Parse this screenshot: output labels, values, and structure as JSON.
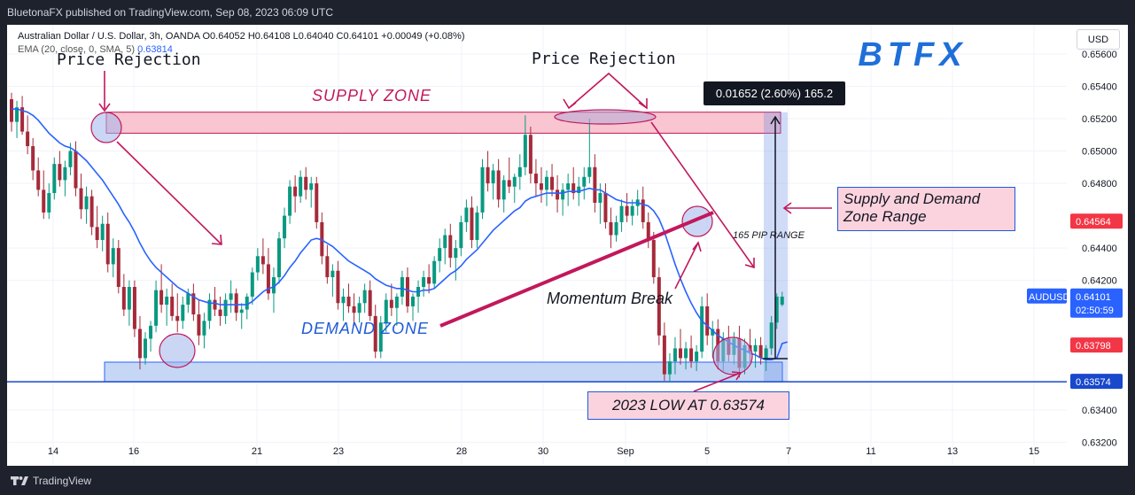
{
  "publisher_line": "BluetonaFX published on TradingView.com, Sep 08, 2023 06:09 UTC",
  "footer": {
    "brand": "TradingView"
  },
  "legend": {
    "line1": "Australian Dollar / U.S. Dollar, 3h, OANDA  O0.64052  H0.64108  L0.64040  C0.64101  +0.00049 (+0.08%)",
    "line2_label": "EMA (20, close, 0, SMA, 5)",
    "line2_value": "0.63814"
  },
  "logo_text": "BTFX",
  "chart_data": {
    "type": "candlestick",
    "symbol": "AUDUSD",
    "timeframe": "3h",
    "currency": "USD",
    "ylim": [
      0.6306,
      0.6578
    ],
    "y_ticks": [
      "0.65600",
      "0.65400",
      "0.65200",
      "0.65000",
      "0.64800",
      "0.64400",
      "0.64200",
      "0.63400",
      "0.63200"
    ],
    "x_ticks": [
      "14",
      "16",
      "21",
      "23",
      "28",
      "30",
      "Sep",
      "5",
      "7",
      "11",
      "13",
      "15"
    ],
    "candles": [
      [
        0.6532,
        0.6536,
        0.6512,
        0.6518
      ],
      [
        0.6518,
        0.6531,
        0.6508,
        0.6527
      ],
      [
        0.6527,
        0.6534,
        0.651,
        0.6512
      ],
      [
        0.6512,
        0.6522,
        0.6498,
        0.6503
      ],
      [
        0.6503,
        0.6508,
        0.6482,
        0.6488
      ],
      [
        0.6488,
        0.6496,
        0.6472,
        0.6476
      ],
      [
        0.6476,
        0.6488,
        0.6458,
        0.6462
      ],
      [
        0.6462,
        0.648,
        0.6458,
        0.6474
      ],
      [
        0.6474,
        0.6496,
        0.647,
        0.6492
      ],
      [
        0.6492,
        0.65,
        0.6478,
        0.6482
      ],
      [
        0.6482,
        0.6494,
        0.6472,
        0.649
      ],
      [
        0.649,
        0.6505,
        0.6485,
        0.65
      ],
      [
        0.65,
        0.6506,
        0.6472,
        0.6477
      ],
      [
        0.6477,
        0.6486,
        0.6458,
        0.6464
      ],
      [
        0.6464,
        0.6478,
        0.6455,
        0.6472
      ],
      [
        0.6472,
        0.6476,
        0.6448,
        0.6453
      ],
      [
        0.6453,
        0.6466,
        0.644,
        0.6445
      ],
      [
        0.6445,
        0.646,
        0.6438,
        0.6455
      ],
      [
        0.6455,
        0.6462,
        0.6425,
        0.643
      ],
      [
        0.643,
        0.6446,
        0.6422,
        0.644
      ],
      [
        0.644,
        0.6445,
        0.6412,
        0.6416
      ],
      [
        0.6416,
        0.6424,
        0.6398,
        0.6402
      ],
      [
        0.6402,
        0.642,
        0.6392,
        0.6416
      ],
      [
        0.6416,
        0.642,
        0.6385,
        0.639
      ],
      [
        0.639,
        0.6398,
        0.6365,
        0.6372
      ],
      [
        0.6372,
        0.6388,
        0.6368,
        0.6384
      ],
      [
        0.6384,
        0.6395,
        0.6376,
        0.6392
      ],
      [
        0.6392,
        0.642,
        0.6388,
        0.6414
      ],
      [
        0.6414,
        0.643,
        0.64,
        0.6405
      ],
      [
        0.6405,
        0.6415,
        0.6392,
        0.641
      ],
      [
        0.641,
        0.6418,
        0.6395,
        0.6398
      ],
      [
        0.6398,
        0.6412,
        0.6388,
        0.6395
      ],
      [
        0.6395,
        0.641,
        0.639,
        0.6405
      ],
      [
        0.6405,
        0.6415,
        0.64,
        0.6412
      ],
      [
        0.6412,
        0.6418,
        0.6395,
        0.6399
      ],
      [
        0.6399,
        0.6408,
        0.638,
        0.6386
      ],
      [
        0.6386,
        0.64,
        0.6378,
        0.6395
      ],
      [
        0.6395,
        0.6412,
        0.639,
        0.6408
      ],
      [
        0.6408,
        0.6416,
        0.6398,
        0.6402
      ],
      [
        0.6402,
        0.641,
        0.6392,
        0.6398
      ],
      [
        0.6398,
        0.6412,
        0.6393,
        0.6408
      ],
      [
        0.6408,
        0.642,
        0.64,
        0.6412
      ],
      [
        0.6412,
        0.6415,
        0.6395,
        0.64
      ],
      [
        0.64,
        0.6406,
        0.639,
        0.6402
      ],
      [
        0.6402,
        0.6412,
        0.6396,
        0.641
      ],
      [
        0.641,
        0.6428,
        0.6405,
        0.6425
      ],
      [
        0.6425,
        0.644,
        0.642,
        0.6435
      ],
      [
        0.6435,
        0.6446,
        0.6424,
        0.643
      ],
      [
        0.643,
        0.644,
        0.6408,
        0.6412
      ],
      [
        0.6412,
        0.6428,
        0.64,
        0.6422
      ],
      [
        0.6422,
        0.645,
        0.6418,
        0.6446
      ],
      [
        0.6446,
        0.6465,
        0.644,
        0.646
      ],
      [
        0.646,
        0.6482,
        0.6455,
        0.6478
      ],
      [
        0.6478,
        0.6485,
        0.6462,
        0.6472
      ],
      [
        0.6472,
        0.6488,
        0.6468,
        0.6484
      ],
      [
        0.6484,
        0.649,
        0.647,
        0.6476
      ],
      [
        0.6476,
        0.6484,
        0.6465,
        0.648
      ],
      [
        0.648,
        0.6484,
        0.6452,
        0.6456
      ],
      [
        0.6456,
        0.6462,
        0.643,
        0.6435
      ],
      [
        0.6435,
        0.6442,
        0.6418,
        0.6422
      ],
      [
        0.6422,
        0.643,
        0.641,
        0.6426
      ],
      [
        0.6426,
        0.6432,
        0.6402,
        0.6406
      ],
      [
        0.6406,
        0.6415,
        0.6395,
        0.641
      ],
      [
        0.641,
        0.6418,
        0.64,
        0.6404
      ],
      [
        0.6404,
        0.6412,
        0.6392,
        0.64
      ],
      [
        0.64,
        0.641,
        0.6394,
        0.6406
      ],
      [
        0.6406,
        0.6418,
        0.64,
        0.6414
      ],
      [
        0.6414,
        0.642,
        0.6395,
        0.6398
      ],
      [
        0.6398,
        0.6405,
        0.6372,
        0.6376
      ],
      [
        0.6376,
        0.6398,
        0.6372,
        0.6394
      ],
      [
        0.6394,
        0.6412,
        0.6388,
        0.6408
      ],
      [
        0.6408,
        0.6418,
        0.6398,
        0.6403
      ],
      [
        0.6403,
        0.6412,
        0.6392,
        0.641
      ],
      [
        0.641,
        0.6426,
        0.6405,
        0.6422
      ],
      [
        0.6422,
        0.6428,
        0.64,
        0.6404
      ],
      [
        0.6404,
        0.6412,
        0.6395,
        0.641
      ],
      [
        0.641,
        0.642,
        0.64,
        0.6416
      ],
      [
        0.6416,
        0.6426,
        0.641,
        0.6422
      ],
      [
        0.6422,
        0.643,
        0.6412,
        0.6418
      ],
      [
        0.6418,
        0.6435,
        0.6415,
        0.6432
      ],
      [
        0.6432,
        0.6446,
        0.6425,
        0.644
      ],
      [
        0.644,
        0.6452,
        0.643,
        0.6448
      ],
      [
        0.6448,
        0.6455,
        0.6428,
        0.6434
      ],
      [
        0.6434,
        0.6445,
        0.642,
        0.644
      ],
      [
        0.644,
        0.646,
        0.6435,
        0.6456
      ],
      [
        0.6456,
        0.647,
        0.645,
        0.6465
      ],
      [
        0.6465,
        0.6472,
        0.644,
        0.6445
      ],
      [
        0.6445,
        0.6466,
        0.644,
        0.6462
      ],
      [
        0.6462,
        0.6495,
        0.6458,
        0.649
      ],
      [
        0.649,
        0.65,
        0.6475,
        0.648
      ],
      [
        0.648,
        0.6492,
        0.647,
        0.6488
      ],
      [
        0.6488,
        0.6495,
        0.6465,
        0.647
      ],
      [
        0.647,
        0.6485,
        0.6462,
        0.6482
      ],
      [
        0.6482,
        0.6496,
        0.6474,
        0.6478
      ],
      [
        0.6478,
        0.6486,
        0.6468,
        0.6484
      ],
      [
        0.6484,
        0.6498,
        0.6476,
        0.649
      ],
      [
        0.649,
        0.6522,
        0.6485,
        0.651
      ],
      [
        0.651,
        0.6515,
        0.648,
        0.6486
      ],
      [
        0.6486,
        0.6495,
        0.6472,
        0.648
      ],
      [
        0.648,
        0.649,
        0.6468,
        0.6476
      ],
      [
        0.6476,
        0.6488,
        0.6466,
        0.6484
      ],
      [
        0.6484,
        0.6492,
        0.6472,
        0.6476
      ],
      [
        0.6476,
        0.6485,
        0.6462,
        0.647
      ],
      [
        0.647,
        0.648,
        0.646,
        0.6476
      ],
      [
        0.6476,
        0.6486,
        0.6466,
        0.648
      ],
      [
        0.648,
        0.649,
        0.647,
        0.6474
      ],
      [
        0.6474,
        0.6484,
        0.6466,
        0.6478
      ],
      [
        0.6478,
        0.649,
        0.647,
        0.6484
      ],
      [
        0.6484,
        0.652,
        0.648,
        0.649
      ],
      [
        0.649,
        0.6498,
        0.6462,
        0.6468
      ],
      [
        0.6468,
        0.648,
        0.6455,
        0.6474
      ],
      [
        0.6474,
        0.648,
        0.6452,
        0.6456
      ],
      [
        0.6456,
        0.6465,
        0.644,
        0.6448
      ],
      [
        0.6448,
        0.646,
        0.6444,
        0.6456
      ],
      [
        0.6456,
        0.647,
        0.645,
        0.6466
      ],
      [
        0.6466,
        0.6474,
        0.6456,
        0.646
      ],
      [
        0.646,
        0.647,
        0.6454,
        0.6466
      ],
      [
        0.6466,
        0.6476,
        0.646,
        0.647
      ],
      [
        0.647,
        0.6478,
        0.6452,
        0.6456
      ],
      [
        0.6456,
        0.6462,
        0.644,
        0.6445
      ],
      [
        0.6445,
        0.645,
        0.6418,
        0.6422
      ],
      [
        0.6422,
        0.6428,
        0.638,
        0.6386
      ],
      [
        0.6386,
        0.6394,
        0.6358,
        0.6362
      ],
      [
        0.6362,
        0.6375,
        0.6357,
        0.637
      ],
      [
        0.637,
        0.6385,
        0.6362,
        0.6378
      ],
      [
        0.6378,
        0.639,
        0.6368,
        0.6372
      ],
      [
        0.6372,
        0.6382,
        0.6365,
        0.6378
      ],
      [
        0.6378,
        0.6386,
        0.6366,
        0.637
      ],
      [
        0.637,
        0.638,
        0.6364,
        0.6376
      ],
      [
        0.6376,
        0.641,
        0.6372,
        0.6404
      ],
      [
        0.6404,
        0.6412,
        0.638,
        0.6386
      ],
      [
        0.6386,
        0.6395,
        0.6372,
        0.639
      ],
      [
        0.639,
        0.6396,
        0.6365,
        0.637
      ],
      [
        0.637,
        0.6388,
        0.6364,
        0.6384
      ],
      [
        0.6384,
        0.6392,
        0.637,
        0.6374
      ],
      [
        0.6374,
        0.6388,
        0.6368,
        0.6384
      ],
      [
        0.6384,
        0.6392,
        0.636,
        0.6366
      ],
      [
        0.6366,
        0.6384,
        0.6362,
        0.638
      ],
      [
        0.638,
        0.639,
        0.637,
        0.6376
      ],
      [
        0.6376,
        0.6384,
        0.6366,
        0.638
      ],
      [
        0.638,
        0.6385,
        0.6368,
        0.6372
      ],
      [
        0.6372,
        0.638,
        0.6364,
        0.6378
      ],
      [
        0.6378,
        0.6398,
        0.6374,
        0.6394
      ],
      [
        0.6394,
        0.6412,
        0.639,
        0.641
      ],
      [
        0.6405,
        0.6413,
        0.6404,
        0.641
      ]
    ],
    "ema": [
      0.6526,
      0.6526,
      0.6525,
      0.6524,
      0.6522,
      0.6519,
      0.6515,
      0.6511,
      0.6508,
      0.6505,
      0.6503,
      0.6502,
      0.65,
      0.6497,
      0.6494,
      0.649,
      0.6486,
      0.6482,
      0.6477,
      0.6472,
      0.6467,
      0.6461,
      0.6456,
      0.645,
      0.6443,
      0.6437,
      0.6432,
      0.6428,
      0.6425,
      0.6422,
      0.6419,
      0.6416,
      0.6414,
      0.6412,
      0.641,
      0.6408,
      0.6407,
      0.6406,
      0.6406,
      0.6405,
      0.6405,
      0.6405,
      0.6405,
      0.6405,
      0.6405,
      0.6407,
      0.641,
      0.6413,
      0.6415,
      0.6416,
      0.6419,
      0.6423,
      0.6428,
      0.6432,
      0.6437,
      0.6441,
      0.6445,
      0.6446,
      0.6445,
      0.6443,
      0.6441,
      0.6438,
      0.6435,
      0.6432,
      0.643,
      0.6428,
      0.6426,
      0.6424,
      0.6421,
      0.6419,
      0.6417,
      0.6416,
      0.6415,
      0.6415,
      0.6414,
      0.6413,
      0.6413,
      0.6414,
      0.6414,
      0.6415,
      0.6418,
      0.6421,
      0.6424,
      0.6426,
      0.6429,
      0.6433,
      0.6436,
      0.6439,
      0.6443,
      0.6447,
      0.6451,
      0.6454,
      0.6457,
      0.646,
      0.6463,
      0.6465,
      0.6469,
      0.6471,
      0.6472,
      0.6473,
      0.6474,
      0.6474,
      0.6474,
      0.6474,
      0.6475,
      0.6475,
      0.6475,
      0.6476,
      0.6477,
      0.6476,
      0.6476,
      0.6474,
      0.6472,
      0.647,
      0.6469,
      0.6468,
      0.6468,
      0.6468,
      0.6467,
      0.6466,
      0.6463,
      0.6458,
      0.645,
      0.644,
      0.643,
      0.6421,
      0.6413,
      0.6406,
      0.64,
      0.6395,
      0.6392,
      0.6389,
      0.6386,
      0.6384,
      0.6382,
      0.638,
      0.6378,
      0.6377,
      0.6375,
      0.6374,
      0.6372,
      0.6371,
      0.6371,
      0.6372,
      0.6381,
      0.6382
    ],
    "zones": {
      "supply": {
        "label": "SUPPLY ZONE",
        "top": 0.6524,
        "bottom": 0.6511
      },
      "demand": {
        "label": "DEMAND ZONE",
        "top": 0.63695,
        "bottom": 0.63574
      }
    },
    "horizontal_line": 0.63574,
    "measure": {
      "label": "0.01652 (2.60%) 165.2",
      "pip_label": "165 PIP RANGE"
    },
    "price_labels": [
      {
        "id": "sym",
        "symbol": "AUDUSD",
        "price": "0.64101",
        "timer": "02:50:59",
        "value": 0.64101,
        "color": "#2962ff"
      },
      {
        "id": "p1",
        "price": "0.64564",
        "value": 0.64564,
        "color": "#f23645"
      },
      {
        "id": "p2",
        "price": "0.63798",
        "value": 0.63798,
        "color": "#f23645"
      },
      {
        "id": "p3",
        "price": "0.63574",
        "value": 0.63574,
        "color": "#1848cc"
      }
    ],
    "annotations": {
      "price_rejection_left": "Price Rejection",
      "price_rejection_top": "Price Rejection",
      "momentum_break": "Momentum Break",
      "supply_demand_range_line1": "Supply and Demand",
      "supply_demand_range_line2": "Zone Range",
      "low_label": "2023 LOW AT 0.63574"
    }
  },
  "colors": {
    "up": "#089981",
    "down": "#a52a3a",
    "ema": "#2962ff",
    "supply_fill": "#f8c5d0",
    "supply_stroke": "#c2185b",
    "demand_fill": "#c6d7f5",
    "demand_stroke": "#2962ff",
    "arrow": "#c2185b"
  }
}
